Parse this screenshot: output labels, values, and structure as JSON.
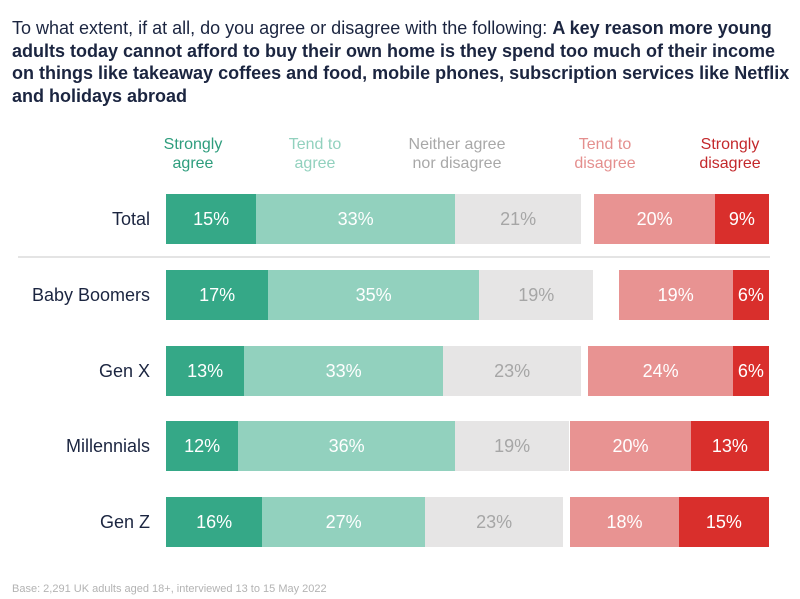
{
  "title": {
    "regular": "To what extent, if at all, do you agree or disagree with the following: ",
    "bold": "A key reason more young adults today cannot afford to buy their own home is they spend too much of their income on things like takeaway coffees and food, mobile phones, subscription services like Netflix and holidays abroad"
  },
  "footer": "Base: 2,291 UK adults aged 18+, interviewed 13 to 15 May 2022",
  "chart_data": {
    "type": "bar",
    "orientation": "horizontal",
    "stacking": "diverging",
    "title": "To what extent, if at all, do you agree or disagree with the following: A key reason more young adults today cannot afford to buy their own home is they spend too much of their income on things like takeaway coffees and food, mobile phones, subscription services like Netflix and holidays abroad",
    "xlabel": "",
    "ylabel": "",
    "value_unit": "%",
    "grid": false,
    "legend_position": "top",
    "categories": [
      "Total",
      "Baby Boomers",
      "Gen X",
      "Millennials",
      "Gen Z"
    ],
    "separator_after_category": "Total",
    "series": [
      {
        "name": "Strongly agree",
        "group": "agree",
        "color": "#35a887",
        "legend_text_color": "#2e9d7d",
        "label_color": "#ffffff",
        "values": [
          15,
          17,
          13,
          12,
          16
        ],
        "labels": [
          "15%",
          "17%",
          "13%",
          "12%",
          "16%"
        ]
      },
      {
        "name": "Tend to agree",
        "group": "agree",
        "color": "#92d1be",
        "legend_text_color": "#92d1be",
        "label_color": "#ffffff",
        "values": [
          33,
          35,
          33,
          36,
          27
        ],
        "labels": [
          "33%",
          "35%",
          "33%",
          "36%",
          "27%"
        ]
      },
      {
        "name": "Neither agree nor disagree",
        "group": "neutral",
        "color": "#e6e5e5",
        "legend_text_color": "#a8a8a8",
        "label_color": "#a6a6a6",
        "values": [
          21,
          19,
          23,
          19,
          23
        ],
        "labels": [
          "21%",
          "19%",
          "23%",
          "19%",
          "23%"
        ]
      },
      {
        "name": "Tend to disagree",
        "group": "disagree",
        "color": "#e89392",
        "legend_text_color": "#e48f8e",
        "label_color": "#ffffff",
        "values": [
          20,
          19,
          24,
          20,
          18
        ],
        "labels": [
          "20%",
          "19%",
          "24%",
          "20%",
          "18%"
        ]
      },
      {
        "name": "Strongly disagree",
        "group": "disagree",
        "color": "#d92f2c",
        "legend_text_color": "#c3282b",
        "label_color": "#ffffff",
        "values": [
          9,
          6,
          6,
          13,
          15
        ],
        "labels": [
          "9%",
          "6%",
          "6%",
          "13%",
          "15%"
        ]
      }
    ]
  }
}
